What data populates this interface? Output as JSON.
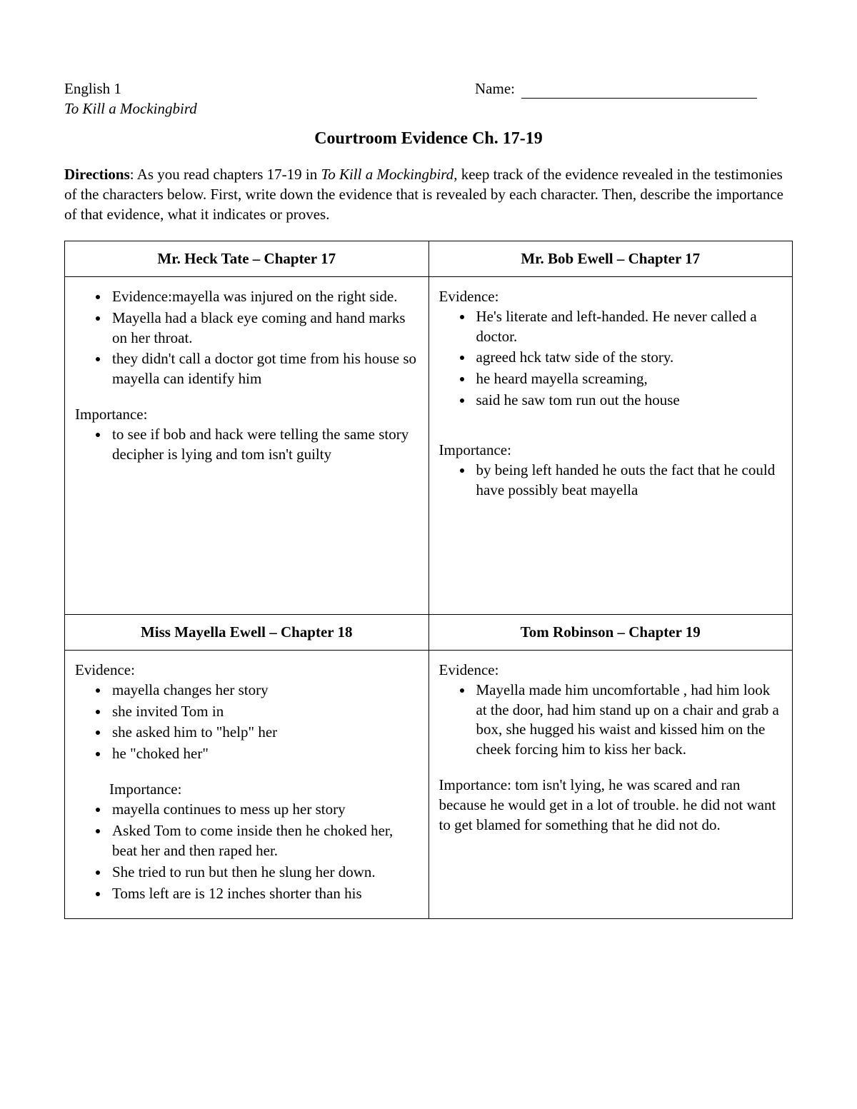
{
  "header": {
    "course": "English 1",
    "book": "To Kill a Mockingbird",
    "name_label": "Name:"
  },
  "title": "Courtroom Evidence Ch. 17-19",
  "directions": {
    "label": "Directions",
    "text_pre": ": As you read chapters 17-19 in ",
    "book_ref": "To Kill a Mockingbird",
    "text_post": ", keep track of the evidence revealed in the testimonies of the characters below. First, write down the evidence that is revealed by each character. Then, describe the importance of that evidence, what it indicates or proves."
  },
  "table": {
    "headers": {
      "c1": "Mr. Heck Tate – Chapter 17",
      "c2": "Mr. Bob Ewell – Chapter 17",
      "c3": "Miss Mayella Ewell – Chapter 18",
      "c4": "Tom Robinson – Chapter 19"
    },
    "cells": {
      "c1": {
        "evidence_label_inline": "Evidence:mayella was injured on the right side.",
        "evidence_items": [
          "Mayella had a black eye coming and hand marks on her throat.",
          "they didn't call a doctor got time from his house so mayella can identify him"
        ],
        "importance_label": "Importance:",
        "importance_items": [
          "to see if bob and hack were telling the same story decipher is lying and tom isn't guilty"
        ]
      },
      "c2": {
        "evidence_label": "Evidence:",
        "evidence_items": [
          "He's literate and left-handed. He never called a doctor.",
          "agreed hck tatw side of the story.",
          "he heard mayella screaming,",
          "said he saw tom run out the house"
        ],
        "importance_label": "Importance:",
        "importance_items": [
          "by being left handed he outs the fact that he could have possibly beat mayella"
        ]
      },
      "c3": {
        "evidence_label": "Evidence:",
        "evidence_items": [
          "mayella changes her story",
          "she invited Tom in",
          "she asked him to \"help\" her",
          "he \"choked her\""
        ],
        "importance_label": "Importance:",
        "importance_items": [
          "mayella continues to mess up her story",
          "Asked Tom to come inside then he choked her, beat her and then raped her.",
          "She tried to run but then he slung her down.",
          "Toms left are is 12  inches shorter than his"
        ]
      },
      "c4": {
        "evidence_label": "Evidence:",
        "evidence_items": [
          "Mayella made him uncomfortable , had him look at the door, had him stand up on a chair and grab a box, she hugged his waist and kissed him on the cheek forcing him to kiss her back."
        ],
        "importance_text": "Importance: tom isn't lying, he was scared and ran because he would get in a lot of trouble. he did not want to get blamed for something that he did not do."
      }
    }
  }
}
